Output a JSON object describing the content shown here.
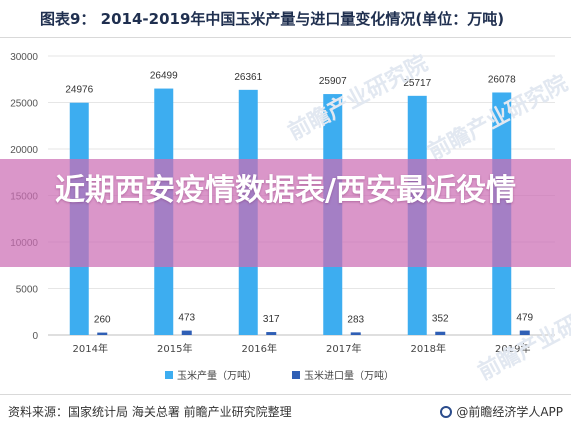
{
  "title": "图表9：  2014-2019年中国玉米产量与进口量变化情况(单位：万吨)",
  "banner": "近期西安疫情数据表/西安最近役情",
  "footer": {
    "source": "资料来源：国家统计局 海关总署 前瞻产业研究院整理",
    "brand": "@前瞻经济学人APP"
  },
  "watermark": "前瞻产业研究院",
  "colors": {
    "series_production": "#3dadf0",
    "series_import": "#2f5fb5",
    "banner": "#cc6eb4"
  },
  "chart_data": {
    "type": "bar",
    "categories": [
      "2014年",
      "2015年",
      "2016年",
      "2017年",
      "2018年",
      "2019年"
    ],
    "series": [
      {
        "name": "玉米产量（万吨）",
        "values": [
          24976,
          26499,
          26361,
          25907,
          25717,
          26078
        ]
      },
      {
        "name": "玉米进口量（万吨）",
        "values": [
          260,
          473,
          317,
          283,
          352,
          479
        ]
      }
    ],
    "yticks": [
      "0",
      "5000",
      "10000",
      "15000",
      "20000",
      "25000",
      "30000"
    ],
    "ylim": [
      0,
      30000
    ],
    "grid": true,
    "legend_position": "bottom"
  }
}
